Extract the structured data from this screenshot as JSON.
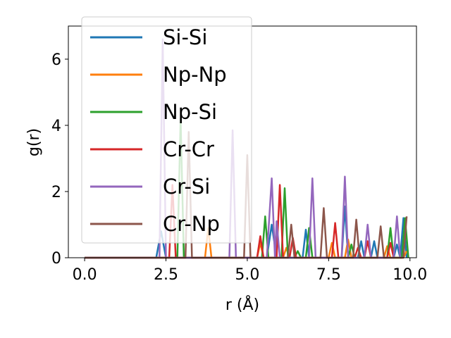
{
  "chart_data": {
    "type": "line",
    "title": "",
    "xlabel": "r (Å)",
    "ylabel": "g(r)",
    "xlim": [
      -0.5,
      10.2
    ],
    "ylim": [
      0,
      7
    ],
    "xticks": [
      "0.0",
      "2.5",
      "5.0",
      "7.5",
      "10.0"
    ],
    "yticks": [
      "0",
      "2",
      "4",
      "6"
    ],
    "grid": false,
    "legend_position": "upper-left",
    "series": [
      {
        "name": "Si-Si",
        "color": "#1f77b4",
        "points": [
          [
            0,
            0
          ],
          [
            2.2,
            0
          ],
          [
            2.35,
            0.8
          ],
          [
            2.5,
            0
          ],
          [
            5.6,
            0
          ],
          [
            5.75,
            1.0
          ],
          [
            5.9,
            0
          ],
          [
            6.7,
            0
          ],
          [
            6.8,
            0.85
          ],
          [
            6.9,
            0
          ],
          [
            7.9,
            0
          ],
          [
            8.0,
            1.55
          ],
          [
            8.1,
            0
          ],
          [
            8.4,
            0
          ],
          [
            8.5,
            0.5
          ],
          [
            8.6,
            0
          ],
          [
            8.8,
            0
          ],
          [
            8.9,
            0.5
          ],
          [
            9.0,
            0
          ],
          [
            9.5,
            0
          ],
          [
            9.6,
            0.4
          ],
          [
            9.7,
            0
          ],
          [
            9.8,
            1.2
          ],
          [
            9.9,
            0
          ]
        ]
      },
      {
        "name": "Np-Np",
        "color": "#ff7f0e",
        "points": [
          [
            0,
            0
          ],
          [
            3.7,
            0
          ],
          [
            3.8,
            0.9
          ],
          [
            3.9,
            0
          ],
          [
            5.3,
            0
          ],
          [
            5.4,
            0.45
          ],
          [
            5.5,
            0
          ],
          [
            6.1,
            0
          ],
          [
            6.2,
            0.3
          ],
          [
            6.3,
            0
          ],
          [
            7.5,
            0
          ],
          [
            7.6,
            0.45
          ],
          [
            7.7,
            0
          ],
          [
            8.0,
            0
          ],
          [
            8.1,
            0.55
          ],
          [
            8.2,
            0
          ],
          [
            9.2,
            0
          ],
          [
            9.3,
            0.35
          ],
          [
            9.4,
            0
          ],
          [
            9.8,
            0
          ],
          [
            9.9,
            0.2
          ]
        ]
      },
      {
        "name": "Np-Si",
        "color": "#2ca02c",
        "points": [
          [
            0,
            0
          ],
          [
            2.85,
            0
          ],
          [
            2.95,
            4.2
          ],
          [
            3.05,
            0
          ],
          [
            5.45,
            0
          ],
          [
            5.55,
            1.25
          ],
          [
            5.65,
            0
          ],
          [
            6.05,
            0
          ],
          [
            6.15,
            2.1
          ],
          [
            6.25,
            0
          ],
          [
            6.45,
            0
          ],
          [
            6.55,
            0.2
          ],
          [
            6.65,
            0
          ],
          [
            6.8,
            0
          ],
          [
            6.9,
            0.9
          ],
          [
            7.0,
            0
          ],
          [
            8.1,
            0
          ],
          [
            8.2,
            0.4
          ],
          [
            8.3,
            0
          ],
          [
            9.3,
            0
          ],
          [
            9.4,
            0.9
          ],
          [
            9.5,
            0
          ],
          [
            9.75,
            0
          ],
          [
            9.85,
            1.2
          ],
          [
            9.95,
            0
          ]
        ]
      },
      {
        "name": "Cr-Cr",
        "color": "#d62728",
        "points": [
          [
            0,
            0
          ],
          [
            2.6,
            0
          ],
          [
            2.7,
            2.2
          ],
          [
            2.8,
            0
          ],
          [
            5.3,
            0
          ],
          [
            5.4,
            0.65
          ],
          [
            5.5,
            0
          ],
          [
            5.9,
            0
          ],
          [
            6.0,
            2.2
          ],
          [
            6.1,
            0
          ],
          [
            6.3,
            0
          ],
          [
            6.4,
            0.6
          ],
          [
            6.5,
            0
          ],
          [
            7.6,
            0
          ],
          [
            7.7,
            1.05
          ],
          [
            7.8,
            0
          ],
          [
            8.3,
            0
          ],
          [
            8.4,
            0.3
          ],
          [
            8.5,
            0
          ],
          [
            8.6,
            0
          ],
          [
            8.7,
            0.5
          ],
          [
            8.8,
            0
          ],
          [
            9.3,
            0
          ],
          [
            9.4,
            0.45
          ],
          [
            9.5,
            0
          ]
        ]
      },
      {
        "name": "Cr-Si",
        "color": "#9467bd",
        "points": [
          [
            0,
            0
          ],
          [
            2.3,
            0
          ],
          [
            2.4,
            6.6
          ],
          [
            2.5,
            0
          ],
          [
            4.45,
            0
          ],
          [
            4.55,
            3.85
          ],
          [
            4.65,
            0
          ],
          [
            5.6,
            0
          ],
          [
            5.75,
            2.4
          ],
          [
            5.85,
            0
          ],
          [
            5.9,
            1.1
          ],
          [
            6.0,
            0
          ],
          [
            6.9,
            0
          ],
          [
            7.0,
            2.4
          ],
          [
            7.1,
            0
          ],
          [
            7.9,
            0
          ],
          [
            8.0,
            2.45
          ],
          [
            8.1,
            0
          ],
          [
            8.6,
            0
          ],
          [
            8.7,
            1.0
          ],
          [
            8.8,
            0
          ],
          [
            9.5,
            0
          ],
          [
            9.6,
            1.25
          ],
          [
            9.7,
            0
          ]
        ]
      },
      {
        "name": "Cr-Np",
        "color": "#8c564b",
        "points": [
          [
            0,
            0
          ],
          [
            3.1,
            0
          ],
          [
            3.2,
            3.8
          ],
          [
            3.3,
            0
          ],
          [
            4.9,
            0
          ],
          [
            5.0,
            3.1
          ],
          [
            5.1,
            0
          ],
          [
            6.25,
            0
          ],
          [
            6.35,
            1.0
          ],
          [
            6.45,
            0
          ],
          [
            7.25,
            0
          ],
          [
            7.35,
            1.5
          ],
          [
            7.45,
            0
          ],
          [
            8.25,
            0
          ],
          [
            8.35,
            1.15
          ],
          [
            8.45,
            0
          ],
          [
            9.0,
            0
          ],
          [
            9.1,
            0.95
          ],
          [
            9.2,
            0
          ],
          [
            9.8,
            0
          ],
          [
            9.9,
            1.25
          ]
        ]
      }
    ]
  }
}
